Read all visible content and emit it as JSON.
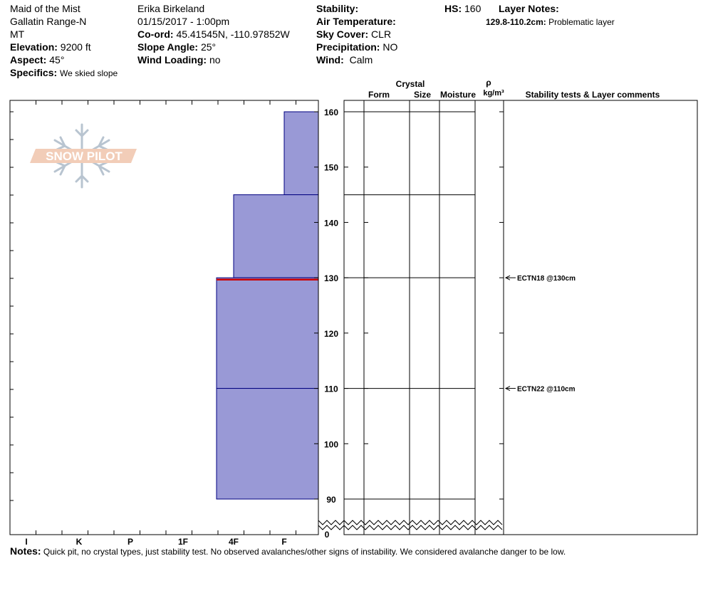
{
  "header": {
    "site": "Maid of the Mist",
    "range": "Gallatin Range-N",
    "state": "MT",
    "elevation_label": "Elevation:",
    "elevation_value": "9200 ft",
    "aspect_label": "Aspect:",
    "aspect_value": "45°",
    "specifics_label": "Specifics:",
    "specifics_value": "We skied slope",
    "observer": "Erika Birkeland",
    "datetime": "01/15/2017 - 1:00pm",
    "coord_label": "Co-ord:",
    "coord_value": "45.41545N, -110.97852W",
    "slope_label": "Slope Angle:",
    "slope_value": "25°",
    "wind_loading_label": "Wind Loading:",
    "wind_loading_value": "no",
    "stability_label": "Stability:",
    "stability_value": "",
    "air_temp_label": "Air Temperature:",
    "air_temp_value": "",
    "sky_label": "Sky Cover:",
    "sky_value": "CLR",
    "precip_label": "Precipitation:",
    "precip_value": "NO",
    "wind_label": "Wind:",
    "wind_value": "Calm",
    "hs_label": "HS:",
    "hs_value": "160",
    "layer_notes_label": "Layer Notes:",
    "layer_note_range": "129.8-110.2cm:",
    "layer_note_text": "Problematic layer"
  },
  "logo": {
    "text": "SNOW PILOT"
  },
  "columns": {
    "crystal": "Crystal",
    "form": "Form",
    "size": "Size",
    "moisture": "Moisture",
    "rho": "ρ",
    "density_unit": "kg/m³",
    "comments": "Stability tests & Layer comments"
  },
  "notes": {
    "label": "Notes:",
    "text": "Quick pit, no crystal types, just stability test. No observed avalanches/other signs of instability. We considered avalanche danger to be low."
  },
  "chart_data": {
    "type": "bar",
    "orientation": "horizontal",
    "title": "",
    "xlabel": "",
    "ylabel": "",
    "hardness_scale": [
      "I",
      "K",
      "P",
      "1F",
      "4F",
      "F"
    ],
    "y_ticks": [
      160,
      150,
      140,
      130,
      120,
      110,
      100,
      90
    ],
    "y_bottom_label": "0",
    "ylim": [
      90,
      160
    ],
    "axis_break": true,
    "layers": [
      {
        "top": 160,
        "bottom": 145,
        "hardness": "F"
      },
      {
        "top": 145,
        "bottom": 130,
        "hardness": "4F"
      },
      {
        "top": 130,
        "bottom": 110,
        "hardness": "4F-"
      },
      {
        "top": 110,
        "bottom": 90,
        "hardness": "4F-"
      }
    ],
    "problematic_layer": {
      "top": 129.8,
      "bottom": 110.2,
      "color": "#cc0000"
    },
    "bar_color": "#9999d6",
    "bar_edge_color": "#000080",
    "stability_tests": [
      {
        "depth": 130,
        "label": "ECTN18 @130cm"
      },
      {
        "depth": 110,
        "label": "ECTN22 @110cm"
      }
    ]
  }
}
